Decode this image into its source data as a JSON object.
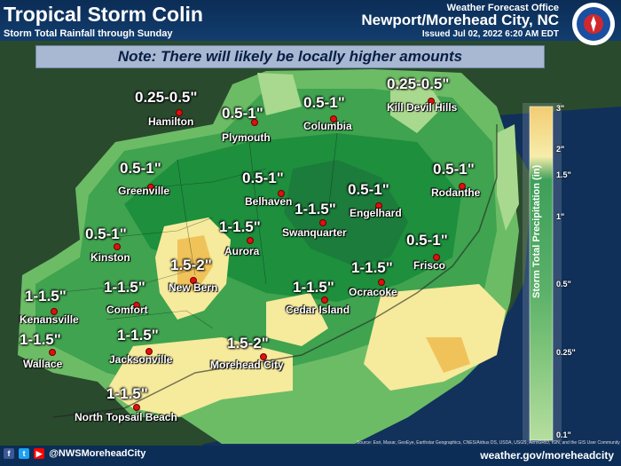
{
  "header": {
    "title": "Tropical Storm Colin",
    "subtitle": "Storm Total Rainfall through Sunday",
    "office_line": "Weather Forecast Office",
    "office_name": "Newport/Morehead City, NC",
    "issued": "Issued Jul 02, 2022 6:20 AM EDT",
    "logo_text": "NATIONAL WEATHER"
  },
  "note": "Note: There will likely be locally higher amounts",
  "locations": [
    {
      "amount": "0.25-0.5\"",
      "city": "Hamilton"
    },
    {
      "amount": "0.5-1\"",
      "city": "Plymouth"
    },
    {
      "amount": "0.5-1\"",
      "city": "Columbia"
    },
    {
      "amount": "0.25-0.5\"",
      "city": "Kill Devil Hills"
    },
    {
      "amount": "0.5-1\"",
      "city": "Greenville"
    },
    {
      "amount": "0.5-1\"",
      "city": "Belhaven"
    },
    {
      "amount": "0.5-1\"",
      "city": "Engelhard"
    },
    {
      "amount": "0.5-1\"",
      "city": "Rodanthe"
    },
    {
      "amount": "1-1.5\"",
      "city": "Swanquarter"
    },
    {
      "amount": "0.5-1\"",
      "city": "Kinston"
    },
    {
      "amount": "1-1.5\"",
      "city": "Aurora"
    },
    {
      "amount": "0.5-1\"",
      "city": "Frisco"
    },
    {
      "amount": "1.5-2\"",
      "city": "New Bern"
    },
    {
      "amount": "1-1.5\"",
      "city": "Ocracoke"
    },
    {
      "amount": "1-1.5\"",
      "city": "Kenansville"
    },
    {
      "amount": "1-1.5\"",
      "city": "Comfort"
    },
    {
      "amount": "1-1.5\"",
      "city": "Cedar Island"
    },
    {
      "amount": "1-1.5\"",
      "city": "Wallace"
    },
    {
      "amount": "1-1.5\"",
      "city": "Jacksonville"
    },
    {
      "amount": "1.5-2\"",
      "city": "Morehead City"
    },
    {
      "amount": "1-1.5\"",
      "city": "North Topsail Beach"
    }
  ],
  "legend": {
    "title": "Storm Total Precipitation (in)",
    "ticks": [
      "3\"",
      "2\"",
      "1.5\"",
      "1\"",
      "0.5\"",
      "0.25\"",
      "0.1\""
    ],
    "colors": [
      "#f0c35a",
      "#f6ea9c",
      "#1d8f3d",
      "#3fa34f",
      "#6cbc66",
      "#a9d98e"
    ]
  },
  "footer": {
    "handle": "@NWSMoreheadCity",
    "url": "weather.gov/moreheadcity",
    "source": "Source: Esri, Maxar, GeoEye, Earthstar Geographics, CNES/Airbus DS, USDA, USGS, AeroGRID, IGN, and the GIS User Community"
  }
}
